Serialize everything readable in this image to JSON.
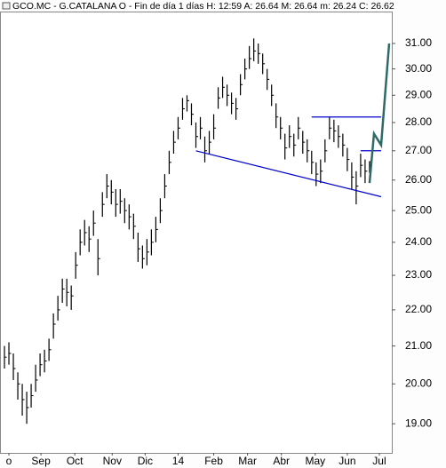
{
  "chart_data": {
    "type": "ohlc",
    "title": "GCO.MC - G.CATALANA O - Fin de día 1 días  H: 12:59  A: 26.64  M: 26.64  m: 26.24  C: 26.62",
    "color": "#000000",
    "log_scale": true,
    "ylim": [
      18.3,
      32.3
    ],
    "yticks": [
      {
        "value": 19,
        "label": "19.00"
      },
      {
        "value": 20,
        "label": "20.00"
      },
      {
        "value": 21,
        "label": "21.00"
      },
      {
        "value": 22,
        "label": "22.00"
      },
      {
        "value": 23,
        "label": "23.00"
      },
      {
        "value": 24,
        "label": "24.00"
      },
      {
        "value": 25,
        "label": "25.00"
      },
      {
        "value": 26,
        "label": "26.00"
      },
      {
        "value": 27,
        "label": "27.00"
      },
      {
        "value": 28,
        "label": "28.00"
      },
      {
        "value": 29,
        "label": "29.00"
      },
      {
        "value": 30,
        "label": "30.00"
      },
      {
        "value": 31,
        "label": "31.00"
      }
    ],
    "xlim": [
      -1,
      87
    ],
    "xticks": [
      {
        "value": 1,
        "label": "o"
      },
      {
        "value": 8.2,
        "label": "Sep"
      },
      {
        "value": 15.8,
        "label": "Oct"
      },
      {
        "value": 24.2,
        "label": "Nov"
      },
      {
        "value": 31.6,
        "label": "Dic"
      },
      {
        "value": 39,
        "label": "14"
      },
      {
        "value": 47,
        "label": "Feb"
      },
      {
        "value": 54.6,
        "label": "Mar"
      },
      {
        "value": 62.2,
        "label": "Abr"
      },
      {
        "value": 69.8,
        "label": "May"
      },
      {
        "value": 77,
        "label": "Jun"
      },
      {
        "value": 84.2,
        "label": "Jul"
      }
    ],
    "high": [
      21.0,
      21.1,
      20.8,
      20.3,
      20.0,
      19.8,
      20.0,
      20.5,
      20.8,
      20.9,
      21.2,
      21.9,
      22.4,
      22.9,
      22.9,
      22.7,
      23.7,
      24.4,
      24.7,
      24.5,
      25.0,
      24.1,
      25.6,
      26.2,
      26.0,
      25.7,
      25.7,
      25.4,
      25.2,
      24.9,
      24.3,
      23.9,
      24.1,
      24.4,
      24.8,
      25.4,
      26.2,
      27.0,
      27.7,
      28.2,
      28.9,
      29.0,
      28.7,
      28.0,
      28.2,
      27.5,
      27.7,
      28.3,
      29.3,
      29.7,
      29.4,
      29.1,
      28.9,
      29.8,
      30.4,
      30.9,
      31.2,
      31.0,
      30.6,
      30.0,
      29.4,
      28.7,
      28.2,
      27.6,
      27.9,
      27.6,
      28.2,
      27.7,
      27.4,
      27.0,
      26.6,
      26.7,
      27.4,
      28.2,
      28.1,
      27.9,
      27.6,
      27.1,
      26.6,
      26.3,
      26.9,
      26.7,
      26.64
    ],
    "low": [
      20.4,
      20.5,
      20.1,
      19.6,
      19.2,
      19.0,
      19.4,
      19.8,
      20.2,
      20.3,
      20.6,
      21.2,
      21.7,
      22.2,
      22.1,
      22.0,
      22.9,
      23.6,
      23.9,
      23.7,
      24.2,
      23.0,
      24.8,
      25.4,
      25.2,
      24.8,
      24.9,
      24.6,
      24.4,
      24.1,
      23.4,
      23.2,
      23.3,
      23.6,
      24.0,
      24.6,
      25.4,
      26.2,
      26.9,
      27.4,
      28.1,
      28.4,
      27.9,
      27.1,
      27.4,
      26.6,
      26.9,
      27.4,
      28.5,
      28.9,
      28.6,
      28.3,
      28.1,
      29.0,
      29.6,
      30.0,
      30.3,
      30.2,
      29.8,
      29.2,
      28.6,
      27.8,
      27.4,
      26.7,
      27.1,
      26.8,
      27.4,
      26.9,
      26.6,
      26.2,
      25.8,
      25.9,
      26.6,
      27.4,
      27.3,
      27.1,
      26.8,
      26.3,
      25.7,
      25.2,
      26.1,
      25.9,
      26.24
    ],
    "close": [
      20.7,
      20.8,
      20.4,
      20.0,
      19.6,
      19.4,
      19.7,
      20.1,
      20.5,
      20.6,
      20.9,
      21.6,
      22.0,
      22.6,
      22.5,
      22.4,
      23.3,
      24.0,
      24.3,
      24.1,
      24.6,
      23.5,
      25.2,
      25.8,
      25.6,
      25.2,
      25.3,
      25.0,
      24.8,
      24.5,
      23.8,
      23.5,
      23.7,
      24.0,
      24.4,
      25.0,
      25.8,
      26.6,
      27.3,
      27.8,
      28.5,
      28.8,
      28.3,
      27.5,
      27.8,
      27.0,
      27.3,
      27.8,
      28.9,
      29.3,
      29.0,
      28.7,
      28.5,
      29.4,
      30.0,
      30.4,
      30.7,
      30.6,
      30.2,
      29.6,
      29.0,
      28.2,
      27.8,
      27.1,
      27.5,
      27.2,
      27.8,
      27.3,
      27.0,
      26.6,
      26.2,
      26.3,
      27.0,
      27.8,
      27.7,
      27.5,
      27.2,
      26.7,
      26.1,
      25.8,
      26.5,
      26.3,
      26.62
    ],
    "annotations": [
      {
        "color": "#0000cc",
        "x": [
          43,
          84.6
        ],
        "y": [
          27.0,
          25.45
        ]
      },
      {
        "color": "#0000cc",
        "x": [
          69,
          84.6
        ],
        "y": [
          28.2,
          28.2
        ]
      },
      {
        "color": "#0000cc",
        "x": [
          80,
          84.6
        ],
        "y": [
          27.0,
          27.0
        ]
      },
      {
        "color": "#2e6b66",
        "x": [
          82,
          83,
          84.6,
          86.4
        ],
        "y": [
          25.9,
          27.6,
          27.2,
          31.0
        ]
      }
    ]
  }
}
